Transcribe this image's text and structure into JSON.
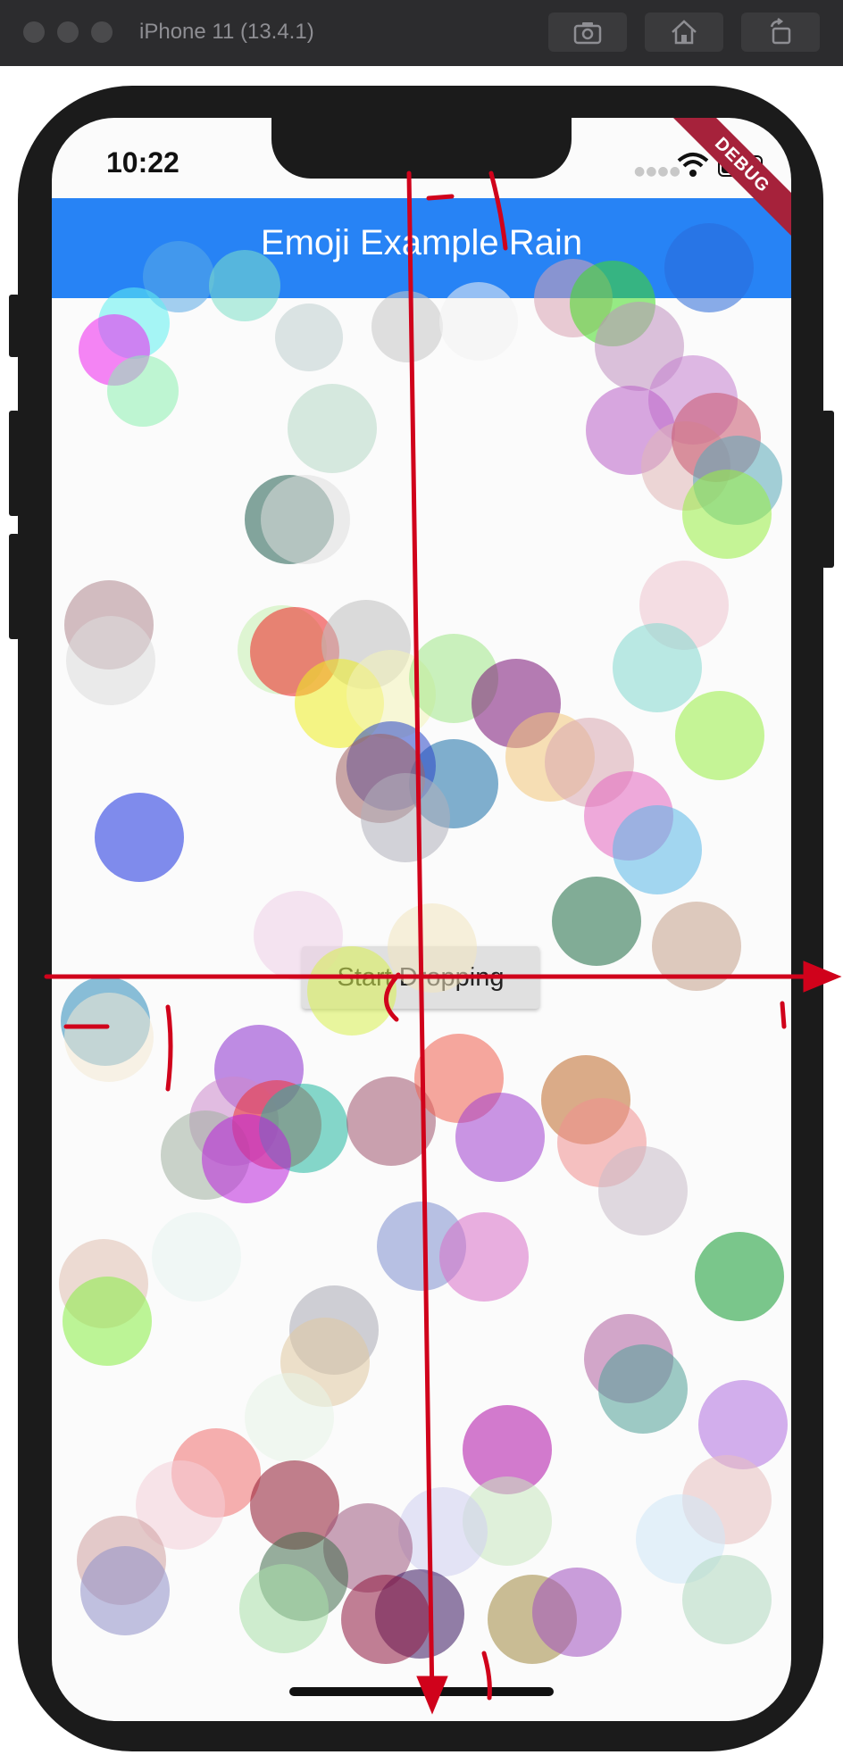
{
  "simulator": {
    "title": "iPhone 11 (13.4.1)",
    "buttons": [
      {
        "name": "screenshot-button",
        "icon": "camera-icon"
      },
      {
        "name": "home-button",
        "icon": "home-icon"
      },
      {
        "name": "rotate-button",
        "icon": "rotate-icon"
      }
    ]
  },
  "status_bar": {
    "time": "10:22"
  },
  "debug_banner": "DEBUG",
  "app_bar": {
    "title": "Emoji Example Rain"
  },
  "start_button": {
    "label": "Start Dropping"
  },
  "colors": {
    "app_bar": "#2783f5",
    "annotation": "#d0021b",
    "debug": "#a6223b"
  }
}
